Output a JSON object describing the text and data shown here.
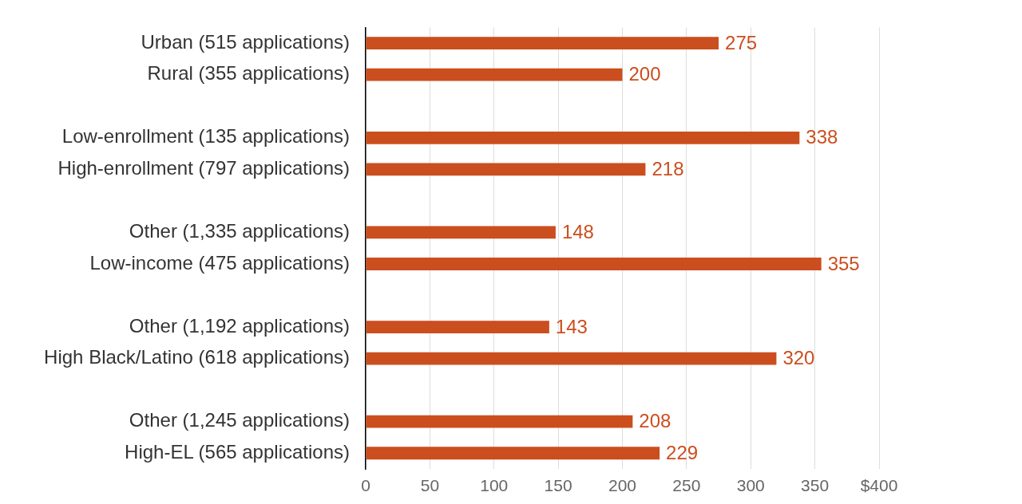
{
  "chart_data": {
    "type": "bar",
    "orientation": "horizontal",
    "categories": [
      "Urban (515 applications)",
      "Rural (355 applications)",
      null,
      "Low-enrollment (135 applications)",
      "High-enrollment (797 applications)",
      null,
      "Other (1,335 applications)",
      "Low-income (475 applications)",
      null,
      "Other (1,192 applications)",
      "High Black/Latino (618 applications)",
      null,
      "Other (1,245 applications)",
      "High-EL (565 applications)"
    ],
    "values": [
      275,
      200,
      null,
      338,
      218,
      null,
      148,
      355,
      null,
      143,
      320,
      null,
      208,
      229
    ],
    "color": "#cb4e1e",
    "xlim": [
      0,
      400
    ],
    "xticks": [
      0,
      50,
      100,
      150,
      200,
      250,
      300,
      350,
      {
        "value": 400,
        "label": "$400"
      }
    ],
    "grid": "x",
    "data_labels": true
  }
}
